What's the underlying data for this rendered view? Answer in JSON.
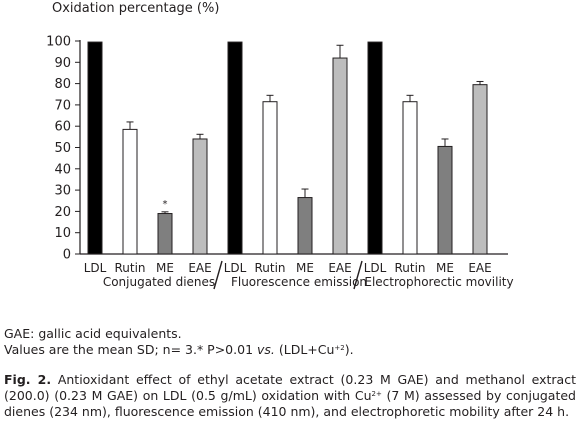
{
  "chart_data": {
    "type": "bar",
    "ylabel": "Oxidation percentage (%)",
    "ylim": [
      0,
      100
    ],
    "yticks": [
      0,
      10,
      20,
      30,
      40,
      50,
      60,
      70,
      80,
      90,
      100
    ],
    "groups": [
      {
        "name": "Conjugated dienes",
        "categories": [
          "LDL",
          "Rutin",
          "ME",
          "EAE"
        ],
        "values": [
          99.5,
          58.5,
          19,
          54
        ],
        "errors": [
          0,
          3.5,
          0.8,
          2.2
        ],
        "annotations": [
          "",
          "",
          "*",
          ""
        ]
      },
      {
        "name": "Fluorescence emission",
        "categories": [
          "LDL",
          "Rutin",
          "ME",
          "EAE"
        ],
        "values": [
          99.5,
          71.5,
          26.5,
          92
        ],
        "errors": [
          0,
          3,
          4,
          6
        ],
        "annotations": [
          "",
          "",
          "",
          ""
        ]
      },
      {
        "name": "Electrophorectic movility",
        "categories": [
          "LDL",
          "Rutin",
          "ME",
          "EAE"
        ],
        "values": [
          99.5,
          71.5,
          50.5,
          79.5
        ],
        "errors": [
          0,
          3,
          3.5,
          1.5
        ],
        "annotations": [
          "",
          "",
          "",
          ""
        ]
      }
    ],
    "colors": {
      "LDL": "#000000",
      "Rutin": "#ffffff",
      "ME": "#7f7f7f",
      "EAE": "#bdbdbd"
    },
    "grid": false,
    "legend": "none"
  },
  "notes": {
    "line1": "GAE: gallic acid equivalents.",
    "line2_prefix": "Values are the mean  SD; n= 3.* P>0.01 ",
    "line2_vs": "vs.",
    "line2_suffix_a": " (LDL+Cu",
    "line2_sup": "+2",
    "line2_suffix_b": ")."
  },
  "caption": {
    "label": "Fig. 2.",
    "text_a": " Antioxidant effect of ethyl acetate extract (0.23 M GAE) and methanol extract (200.0) (0.23 M GAE) on LDL (0.5 g/mL) oxidation with Cu",
    "sup": "2+",
    "text_b": " (7 M) assessed by conjugated dienes (234 nm), fluorescence emission (410 nm), and electrophoretic mobility after 24 h."
  }
}
